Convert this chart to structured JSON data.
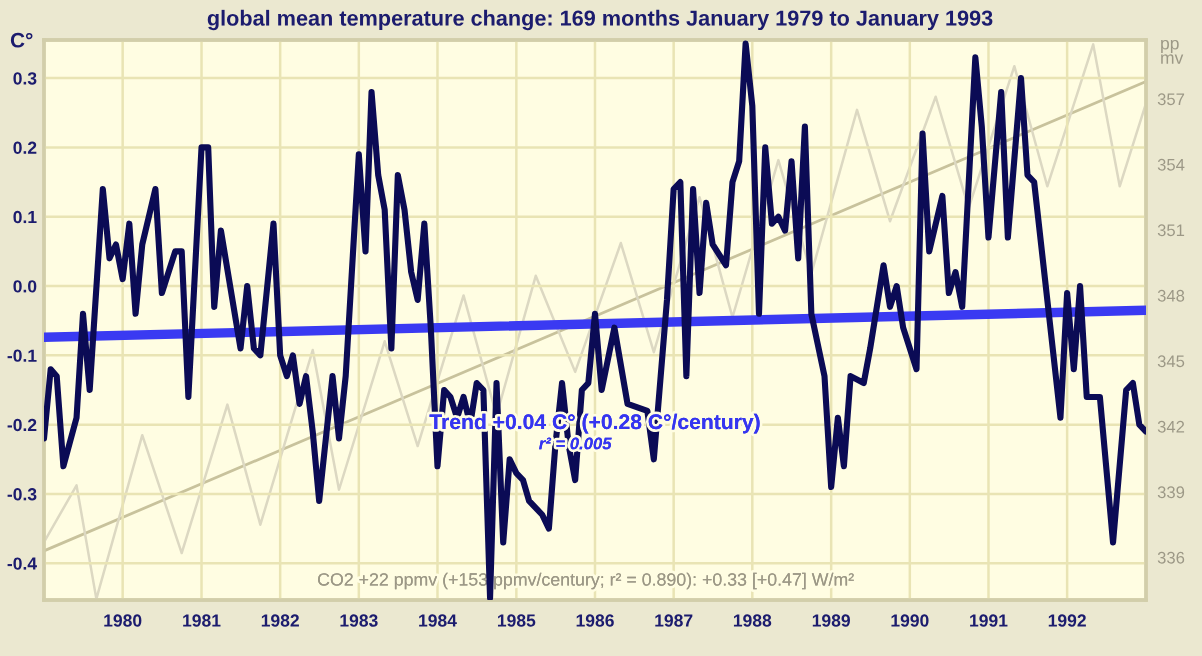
{
  "chart_data": {
    "type": "line",
    "title": "global mean temperature change: 169 months January 1979 to January 1993",
    "ylabel": "C°",
    "y2label": "pp\nmv",
    "annotations": [
      "Trend +0.04 C° (+0.28 C°/century)",
      "r² = 0.005",
      "CO2 +22 ppmv (+153 ppmv/century; r² = 0.890): +0.33 [+0.47] W/m²"
    ],
    "xlim": [
      "1979-01",
      "1993-01"
    ],
    "xticks": [
      "1980",
      "1981",
      "1982",
      "1983",
      "1984",
      "1985",
      "1986",
      "1987",
      "1988",
      "1989",
      "1990",
      "1991",
      "1992"
    ],
    "ylim": [
      -0.453,
      0.355
    ],
    "yticks": [
      -0.4,
      -0.3,
      -0.2,
      -0.1,
      {
        "value": 0,
        "label": "0.0"
      },
      0.1,
      0.2,
      0.3
    ],
    "y2lim": [
      334.05,
      359.7
    ],
    "y2ticks": [
      336,
      339,
      342,
      345,
      348,
      351,
      354,
      357
    ],
    "grid": true,
    "marker": "none",
    "line_style": "solid",
    "series": [
      {
        "color": "#0b0b55",
        "x": [
          "1979-01",
          "1979-02",
          "1979-03",
          "1979-04",
          "1979-06",
          "1979-07",
          "1979-08",
          "1979-10",
          "1979-11",
          "1979-12",
          "1980-01",
          "1980-02",
          "1980-03",
          "1980-04",
          "1980-06",
          "1980-07",
          "1980-09",
          "1980-10",
          "1980-11",
          "1981-01",
          "1981-02",
          "1981-03",
          "1981-04",
          "1981-07",
          "1981-08",
          "1981-09",
          "1981-10",
          "1981-12",
          "1982-01",
          "1982-02",
          "1982-03",
          "1982-04",
          "1982-05",
          "1982-06",
          "1982-07",
          "1982-08",
          "1982-09",
          "1982-10",
          "1982-11",
          "1983-01",
          "1983-02",
          "1983-03",
          "1983-04",
          "1983-05",
          "1983-06",
          "1983-07",
          "1983-08",
          "1983-09",
          "1983-10",
          "1983-11",
          "1983-12",
          "1984-01",
          "1984-02",
          "1984-03",
          "1984-04",
          "1984-05",
          "1984-06",
          "1984-07",
          "1984-08",
          "1984-09",
          "1984-10",
          "1984-11",
          "1984-12",
          "1985-01",
          "1985-02",
          "1985-03",
          "1985-05",
          "1985-06",
          "1985-07",
          "1985-08",
          "1985-09",
          "1985-10",
          "1985-11",
          "1985-12",
          "1986-01",
          "1986-02",
          "1986-04",
          "1986-06",
          "1986-09",
          "1986-10",
          "1986-12",
          "1987-01",
          "1987-02",
          "1987-03",
          "1987-04",
          "1987-05",
          "1987-06",
          "1987-07",
          "1987-09",
          "1987-10",
          "1987-11",
          "1987-12",
          "1988-01",
          "1988-02",
          "1988-03",
          "1988-04",
          "1988-05",
          "1988-06",
          "1988-07",
          "1988-08",
          "1988-09",
          "1988-10",
          "1988-12",
          "1989-01",
          "1989-02",
          "1989-03",
          "1989-04",
          "1989-06",
          "1989-07",
          "1989-09",
          "1989-10",
          "1989-11",
          "1989-12",
          "1990-02",
          "1990-03",
          "1990-04",
          "1990-06",
          "1990-07",
          "1990-08",
          "1990-09",
          "1990-11",
          "1990-12",
          "1991-01",
          "1991-03",
          "1991-04",
          "1991-06",
          "1991-07",
          "1991-08",
          "1991-12",
          "1992-01",
          "1992-02",
          "1992-03",
          "1992-04",
          "1992-06",
          "1992-08",
          "1992-10",
          "1992-11",
          "1992-12",
          "1993-01"
        ],
        "values": [
          -0.22,
          -0.12,
          -0.13,
          -0.26,
          -0.19,
          -0.04,
          -0.15,
          0.14,
          0.04,
          0.06,
          0.01,
          0.09,
          -0.04,
          0.06,
          0.14,
          -0.01,
          0.05,
          0.05,
          -0.16,
          0.2,
          0.2,
          -0.03,
          0.08,
          -0.09,
          0.0,
          -0.09,
          -0.1,
          0.09,
          -0.1,
          -0.13,
          -0.1,
          -0.17,
          -0.13,
          -0.21,
          -0.31,
          -0.22,
          -0.13,
          -0.22,
          -0.13,
          0.19,
          0.05,
          0.28,
          0.16,
          0.11,
          -0.09,
          0.16,
          0.11,
          0.02,
          -0.02,
          0.09,
          -0.06,
          -0.26,
          -0.15,
          -0.16,
          -0.19,
          -0.16,
          -0.2,
          -0.14,
          -0.15,
          -0.45,
          -0.14,
          -0.37,
          -0.25,
          -0.27,
          -0.28,
          -0.31,
          -0.33,
          -0.35,
          -0.23,
          -0.14,
          -0.23,
          -0.28,
          -0.15,
          -0.14,
          -0.04,
          -0.15,
          -0.06,
          -0.17,
          -0.18,
          -0.25,
          -0.02,
          0.14,
          0.15,
          -0.13,
          0.14,
          -0.01,
          0.12,
          0.06,
          0.03,
          0.15,
          0.18,
          0.35,
          0.26,
          -0.04,
          0.2,
          0.09,
          0.1,
          0.08,
          0.18,
          0.04,
          0.23,
          -0.04,
          -0.13,
          -0.29,
          -0.19,
          -0.26,
          -0.13,
          -0.14,
          -0.09,
          0.03,
          -0.03,
          0.0,
          -0.06,
          -0.12,
          0.22,
          0.05,
          0.13,
          -0.01,
          0.02,
          -0.03,
          0.33,
          0.23,
          0.07,
          0.28,
          0.07,
          0.3,
          0.16,
          0.15,
          -0.19,
          -0.01,
          -0.12,
          0.0,
          -0.16,
          -0.16,
          -0.37,
          -0.15,
          -0.14,
          -0.2,
          -0.21
        ]
      },
      {
        "color": "#3a3af2",
        "x": [
          "1979-01",
          "1993-01"
        ],
        "values": [
          -0.074,
          -0.035
        ]
      },
      {
        "axis": "y2",
        "color": "#c8c29c",
        "x": [
          "1979-01",
          "1993-01"
        ],
        "values": [
          336.3,
          357.8
        ]
      },
      {
        "axis": "y2",
        "color": "#dcd8c2",
        "x": [
          "1979-01",
          "1979-06",
          "1979-09",
          "1980-04",
          "1980-10",
          "1981-05",
          "1981-10",
          "1982-06",
          "1982-10",
          "1983-05",
          "1983-10",
          "1984-05",
          "1984-10",
          "1985-04",
          "1985-10",
          "1986-05",
          "1986-10",
          "1987-05",
          "1987-10",
          "1988-05",
          "1988-10",
          "1989-05",
          "1989-10",
          "1990-05",
          "1990-10",
          "1991-05",
          "1991-10",
          "1992-05",
          "1992-09",
          "1993-01"
        ],
        "values": [
          336.7,
          339.3,
          334.1,
          341.6,
          336.2,
          343.0,
          337.5,
          345.5,
          339.1,
          345.9,
          341.1,
          348.0,
          342.5,
          348.9,
          344.5,
          350.4,
          345.4,
          352.5,
          347.0,
          354.2,
          349.0,
          356.5,
          351.4,
          357.1,
          352.0,
          358.5,
          353.0,
          359.5,
          353.0,
          356.8
        ]
      }
    ]
  }
}
